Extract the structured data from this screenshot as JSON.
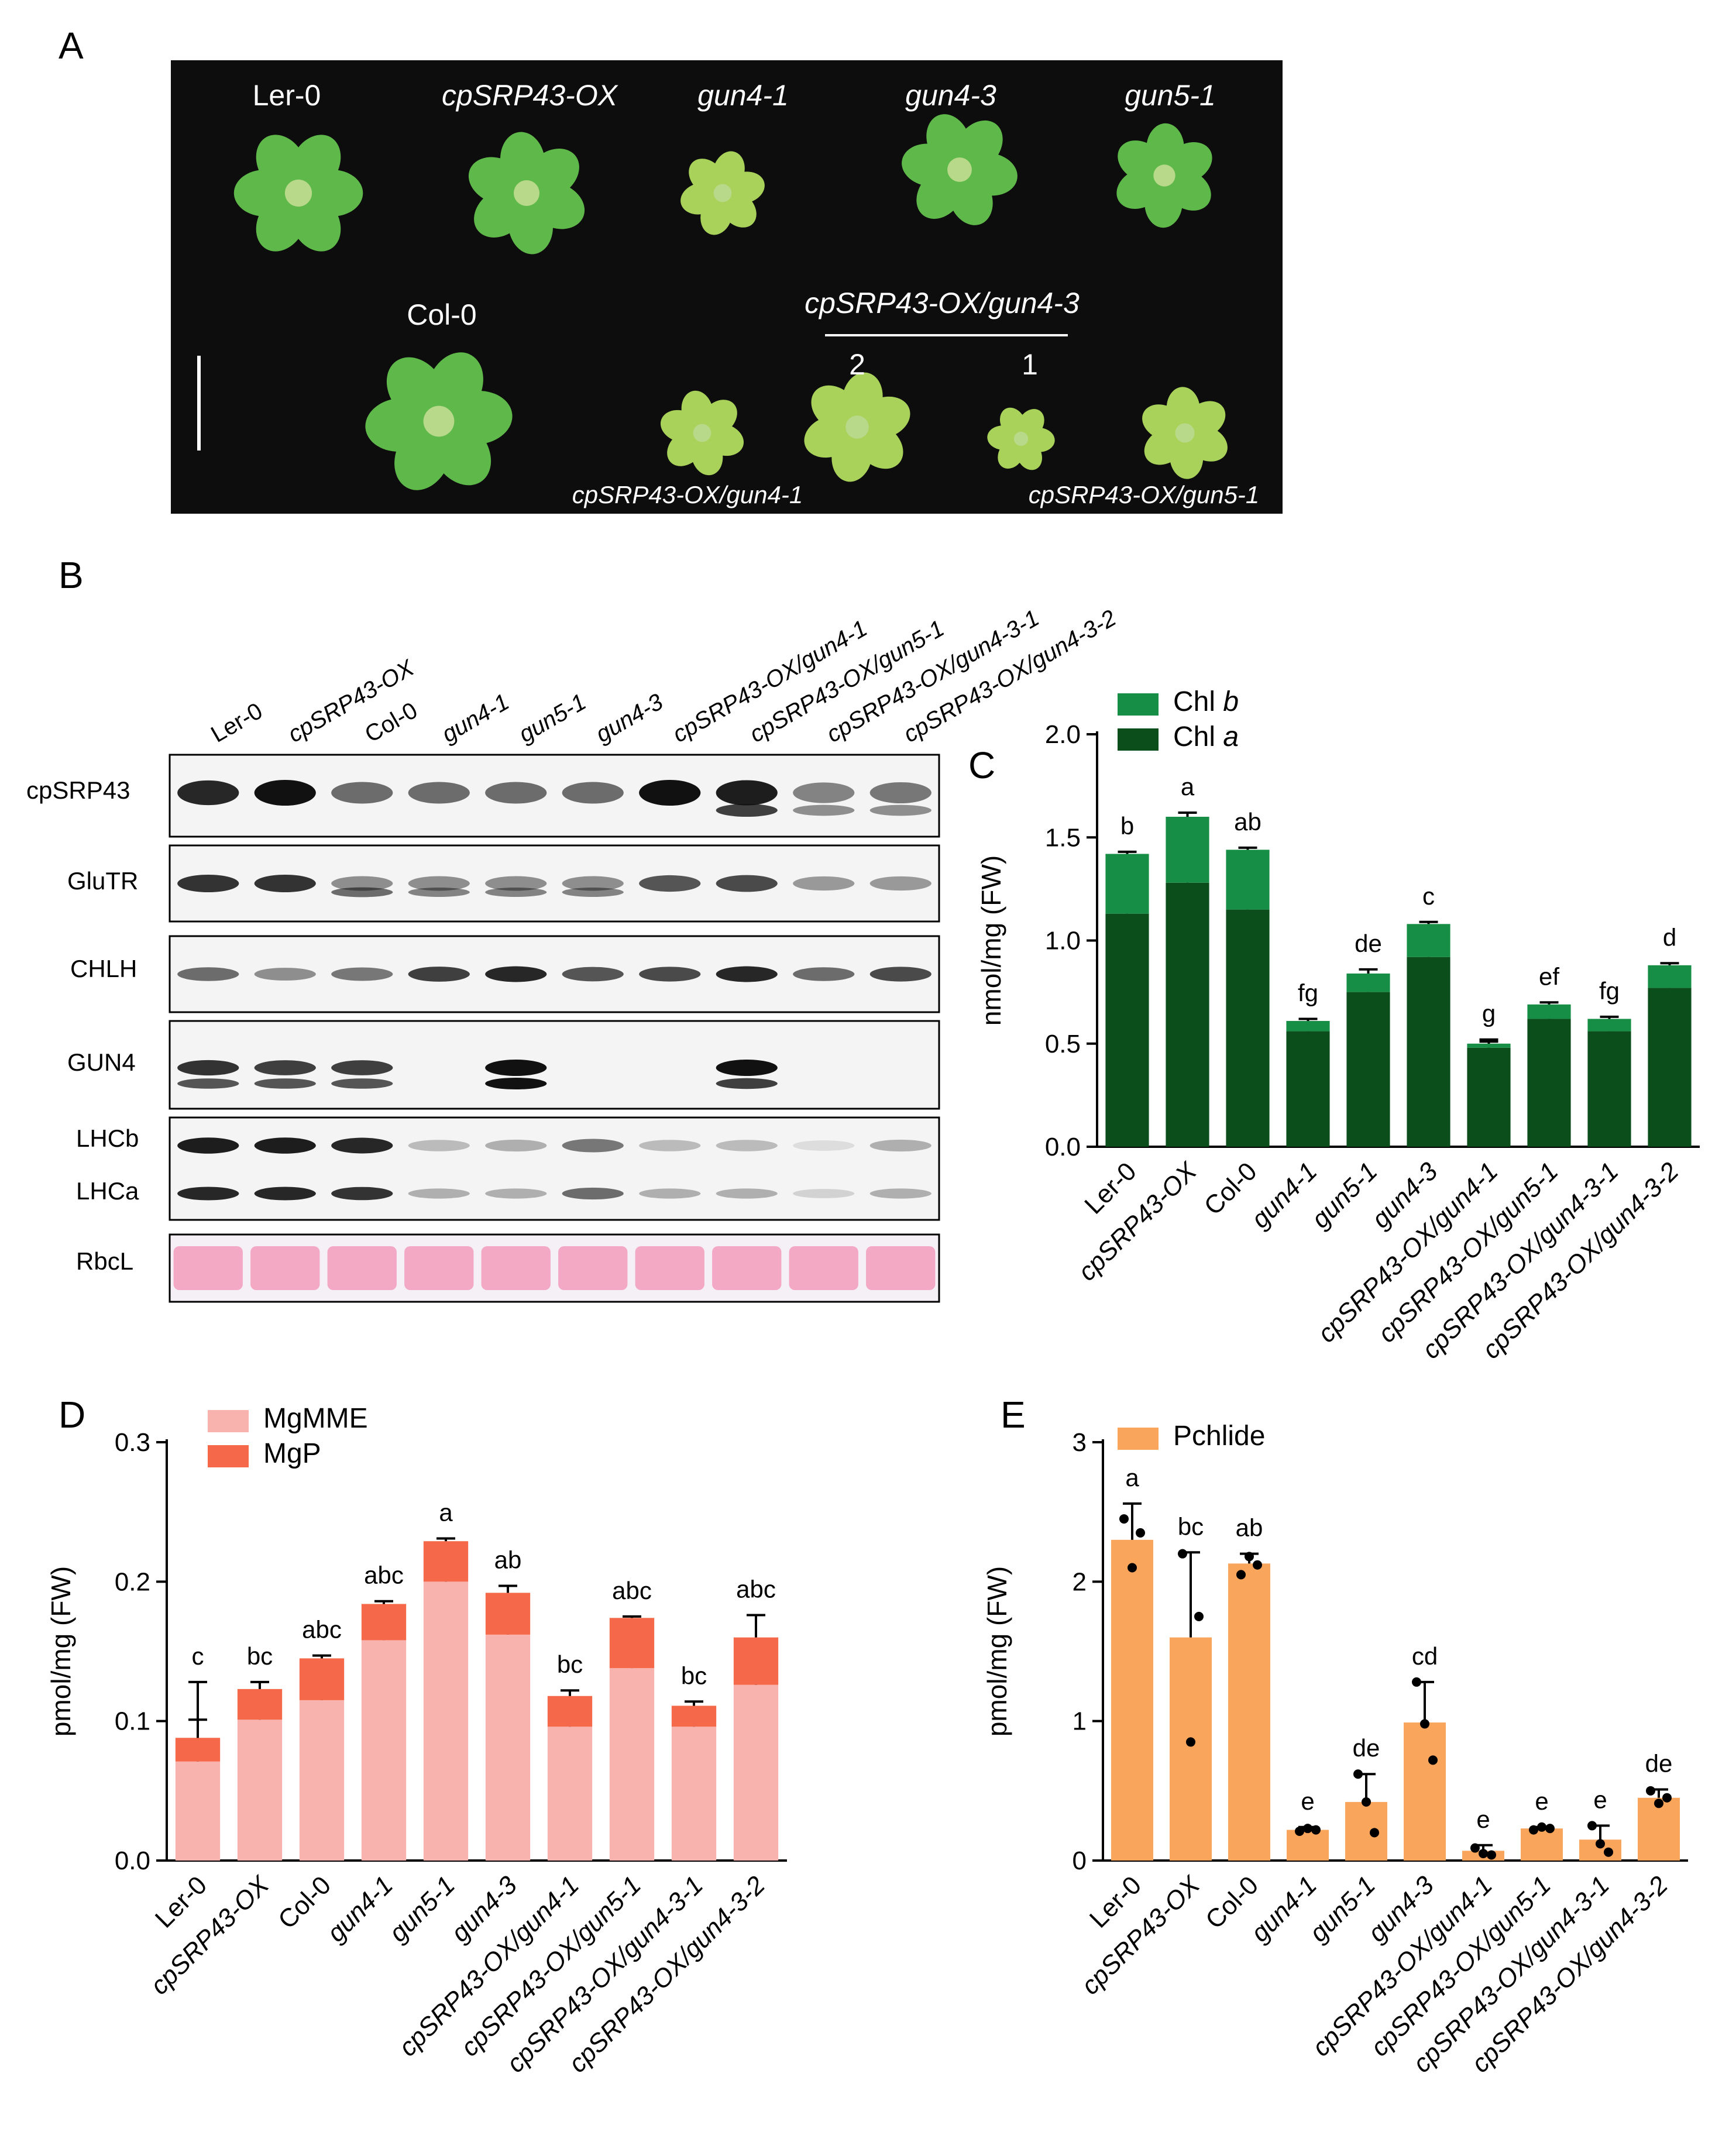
{
  "panels": {
    "a": "A",
    "b": "B",
    "c": "C",
    "d": "D",
    "e": "E"
  },
  "panel_a": {
    "top_row": [
      "Ler-0",
      "cpSRP43-OX",
      "gun4-1",
      "gun4-3",
      "gun5-1"
    ],
    "col0": "Col-0",
    "bracket_title": "cpSRP43-OX/gun4-3",
    "bracket_numbers": [
      "2",
      "1"
    ],
    "bottom_left": "cpSRP43-OX/gun4-1",
    "bottom_right": "cpSRP43-OX/gun5-1",
    "background": "#0d0d0d",
    "leaf_color": "#5fb84a",
    "pale_leaf_color": "#a9d25a"
  },
  "panel_b": {
    "lanes": [
      "Ler-0",
      "cpSRP43-OX",
      "Col-0",
      "gun4-1",
      "gun5-1",
      "gun4-3",
      "cpSRP43-OX/gun4-1",
      "cpSRP43-OX/gun5-1",
      "cpSRP43-OX/gun4-3-1",
      "cpSRP43-OX/gun4-3-2"
    ],
    "blot_labels": [
      "cpSRP43",
      "GluTR",
      "CHLH",
      "GUN4",
      "LHCb",
      "LHCa",
      "RbcL"
    ],
    "stain_color": "#f3a8c4"
  },
  "chart_data": [
    {
      "id": "C",
      "type": "bar",
      "stacked": true,
      "categories": [
        "Ler-0",
        "cpSRP43-OX",
        "Col-0",
        "gun4-1",
        "gun5-1",
        "gun4-3",
        "cpSRP43-OX/gun4-1",
        "cpSRP43-OX/gun5-1",
        "cpSRP43-OX/gun4-3-1",
        "cpSRP43-OX/gun4-3-2"
      ],
      "series": [
        {
          "name": "Chl a",
          "color": "#0c4d1c",
          "values": [
            1.13,
            1.28,
            1.15,
            0.56,
            0.75,
            0.92,
            0.48,
            0.62,
            0.56,
            0.77
          ],
          "err": [
            0.05,
            0.06,
            0.07,
            0.03,
            0.05,
            0.02,
            0.04,
            0.05,
            0.03,
            0.07
          ]
        },
        {
          "name": "Chl b",
          "color": "#168e45",
          "values": [
            0.29,
            0.32,
            0.29,
            0.05,
            0.09,
            0.16,
            0.02,
            0.07,
            0.06,
            0.11
          ],
          "err": [
            0.01,
            0.02,
            0.01,
            0.01,
            0.02,
            0.01,
            0.01,
            0.01,
            0.01,
            0.01
          ]
        }
      ],
      "legend": [
        "Chl b",
        "Chl a"
      ],
      "letters": [
        "b",
        "a",
        "ab",
        "fg",
        "de",
        "c",
        "g",
        "ef",
        "fg",
        "d"
      ],
      "ylabel": "nmol/mg (FW)",
      "ylim": [
        0,
        2.0
      ],
      "yticks": [
        "0.0",
        "0.5",
        "1.0",
        "1.5",
        "2.0"
      ]
    },
    {
      "id": "D",
      "type": "bar",
      "stacked": true,
      "categories": [
        "Ler-0",
        "cpSRP43-OX",
        "Col-0",
        "gun4-1",
        "gun5-1",
        "gun4-3",
        "cpSRP43-OX/gun4-1",
        "cpSRP43-OX/gun5-1",
        "cpSRP43-OX/gun4-3-1",
        "cpSRP43-OX/gun4-3-2"
      ],
      "series": [
        {
          "name": "MgMME",
          "color": "#f8b3ae",
          "values": [
            0.071,
            0.101,
            0.115,
            0.158,
            0.2,
            0.162,
            0.096,
            0.138,
            0.096,
            0.126
          ],
          "err": [
            0.03,
            0.009,
            0.016,
            0.009,
            0.014,
            0.017,
            0.009,
            0.026,
            0.007,
            0.029
          ]
        },
        {
          "name": "MgP",
          "color": "#f5694a",
          "values": [
            0.017,
            0.022,
            0.03,
            0.026,
            0.029,
            0.03,
            0.022,
            0.036,
            0.015,
            0.034
          ],
          "err": [
            0.04,
            0.005,
            0.002,
            0.002,
            0.002,
            0.005,
            0.004,
            0.001,
            0.003,
            0.016
          ]
        }
      ],
      "legend": [
        "MgMME",
        "MgP"
      ],
      "letters": [
        "c",
        "bc",
        "abc",
        "abc",
        "a",
        "ab",
        "bc",
        "abc",
        "bc",
        "abc"
      ],
      "ylabel": "pmol/mg (FW)",
      "ylim": [
        0,
        0.3
      ],
      "yticks": [
        "0.0",
        "0.1",
        "0.2",
        "0.3"
      ]
    },
    {
      "id": "E",
      "type": "bar",
      "stacked": false,
      "categories": [
        "Ler-0",
        "cpSRP43-OX",
        "Col-0",
        "gun4-1",
        "gun5-1",
        "gun4-3",
        "cpSRP43-OX/gun4-1",
        "cpSRP43-OX/gun5-1",
        "cpSRP43-OX/gun4-3-1",
        "cpSRP43-OX/gun4-3-2"
      ],
      "series": [
        {
          "name": "Pchlide",
          "color": "#f9a65c",
          "values": [
            2.3,
            1.6,
            2.13,
            0.22,
            0.42,
            0.99,
            0.07,
            0.23,
            0.15,
            0.45
          ],
          "err": [
            0.26,
            0.61,
            0.07,
            0.02,
            0.2,
            0.29,
            0.04,
            0.01,
            0.1,
            0.06
          ]
        }
      ],
      "points": [
        [
          2.45,
          2.1,
          2.35
        ],
        [
          2.2,
          0.85,
          1.75
        ],
        [
          2.05,
          2.18,
          2.12
        ],
        [
          0.21,
          0.23,
          0.22
        ],
        [
          0.62,
          0.42,
          0.2
        ],
        [
          1.28,
          0.98,
          0.72
        ],
        [
          0.09,
          0.05,
          0.04
        ],
        [
          0.22,
          0.24,
          0.23
        ],
        [
          0.25,
          0.12,
          0.06
        ],
        [
          0.5,
          0.41,
          0.45
        ]
      ],
      "legend": [
        "Pchlide"
      ],
      "letters": [
        "a",
        "bc",
        "ab",
        "e",
        "de",
        "cd",
        "e",
        "e",
        "e",
        "de"
      ],
      "ylabel": "pmol/mg (FW)",
      "ylim": [
        0,
        3
      ],
      "yticks": [
        "0",
        "1",
        "2",
        "3"
      ]
    }
  ]
}
